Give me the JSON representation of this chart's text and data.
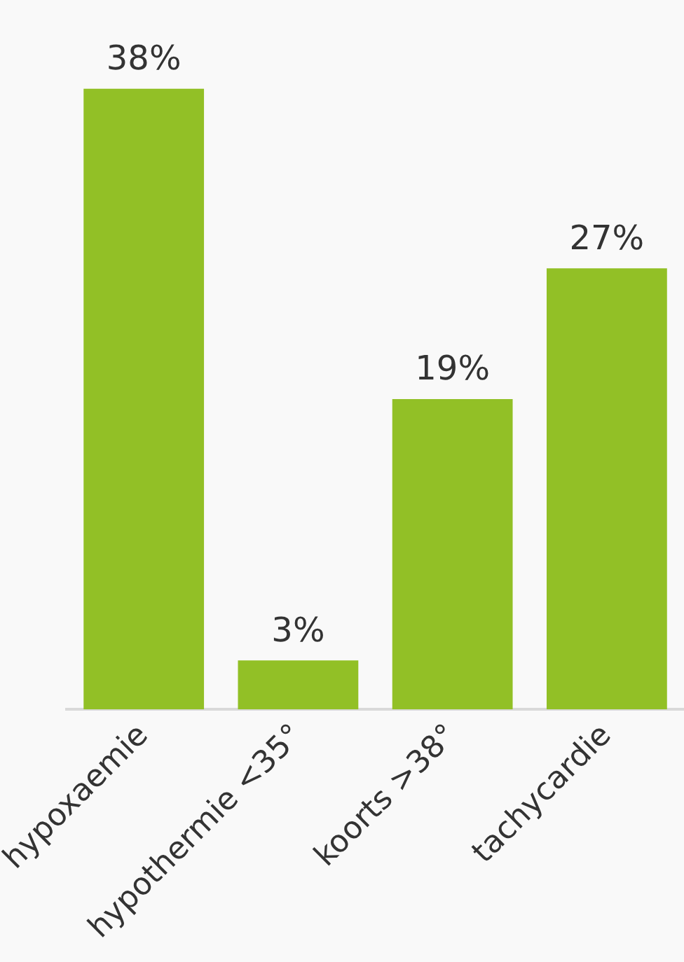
{
  "chart_data": {
    "type": "bar",
    "categories": [
      "hypoxaemie",
      "hypothermie <35°",
      "koorts >38°",
      "tachycardie"
    ],
    "values": [
      38,
      3,
      19,
      27
    ],
    "value_labels": [
      "38%",
      "3%",
      "19%",
      "27%"
    ],
    "color": "#92c026",
    "grid": false,
    "legend": false
  }
}
